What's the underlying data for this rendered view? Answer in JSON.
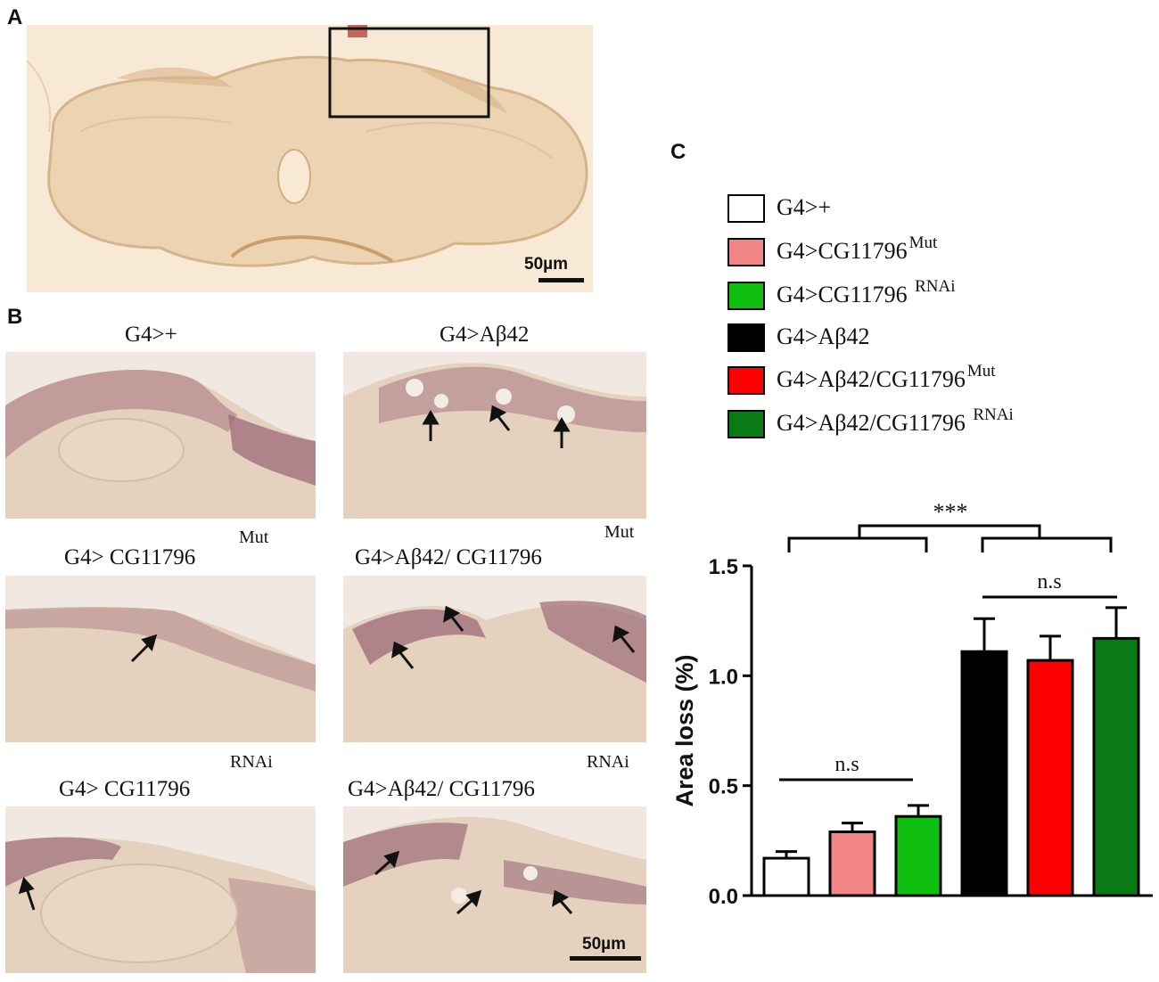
{
  "panels": {
    "a": {
      "letter": "A",
      "scale_bar": "50µm"
    },
    "b": {
      "letter": "B",
      "scale_bar": "50µm",
      "images": [
        {
          "title": "G4>+",
          "superscript": ""
        },
        {
          "title": "G4>Aβ42",
          "superscript": ""
        },
        {
          "title": "G4> CG11796",
          "superscript": "Mut"
        },
        {
          "title": "G4>Aβ42/ CG11796",
          "superscript": "Mut"
        },
        {
          "title": "G4> CG11796",
          "superscript": "RNAi"
        },
        {
          "title": "G4>Aβ42/ CG11796",
          "superscript": "RNAi"
        }
      ]
    },
    "c": {
      "letter": "C"
    }
  },
  "legend": [
    {
      "label": "G4>+",
      "sup": "",
      "color": "#ffffff"
    },
    {
      "label": "G4>CG11796",
      "sup": "Mut",
      "color": "#f28585"
    },
    {
      "label": "G4>CG11796 ",
      "sup": "RNAi",
      "color": "#10c010"
    },
    {
      "label": "G4>Aβ42",
      "sup": "",
      "color": "#000000"
    },
    {
      "label": "G4>Aβ42/CG11796",
      "sup": "Mut",
      "color": "#ff0000"
    },
    {
      "label": "G4>Aβ42/CG11796 ",
      "sup": "RNAi",
      "color": "#0a7a14"
    }
  ],
  "chart_data": {
    "type": "bar",
    "ylabel": "Area loss (%)",
    "ylim": [
      0,
      1.5
    ],
    "yticks": [
      "0.0",
      "0.5",
      "1.0",
      "1.5"
    ],
    "categories": [
      "G4>+",
      "G4>CG11796 Mut",
      "G4>CG11796 RNAi",
      "G4>Aβ42",
      "G4>Aβ42/CG11796 Mut",
      "G4>Aβ42/CG11796 RNAi"
    ],
    "values": [
      0.17,
      0.29,
      0.36,
      1.11,
      1.07,
      1.17
    ],
    "errors": [
      0.03,
      0.04,
      0.05,
      0.15,
      0.11,
      0.14
    ],
    "colors": [
      "#ffffff",
      "#f28585",
      "#10c010",
      "#000000",
      "#ff0000",
      "#0a7a14"
    ],
    "annotations": {
      "ns_low": "n.s",
      "ns_high": "n.s",
      "significance": "***"
    }
  }
}
